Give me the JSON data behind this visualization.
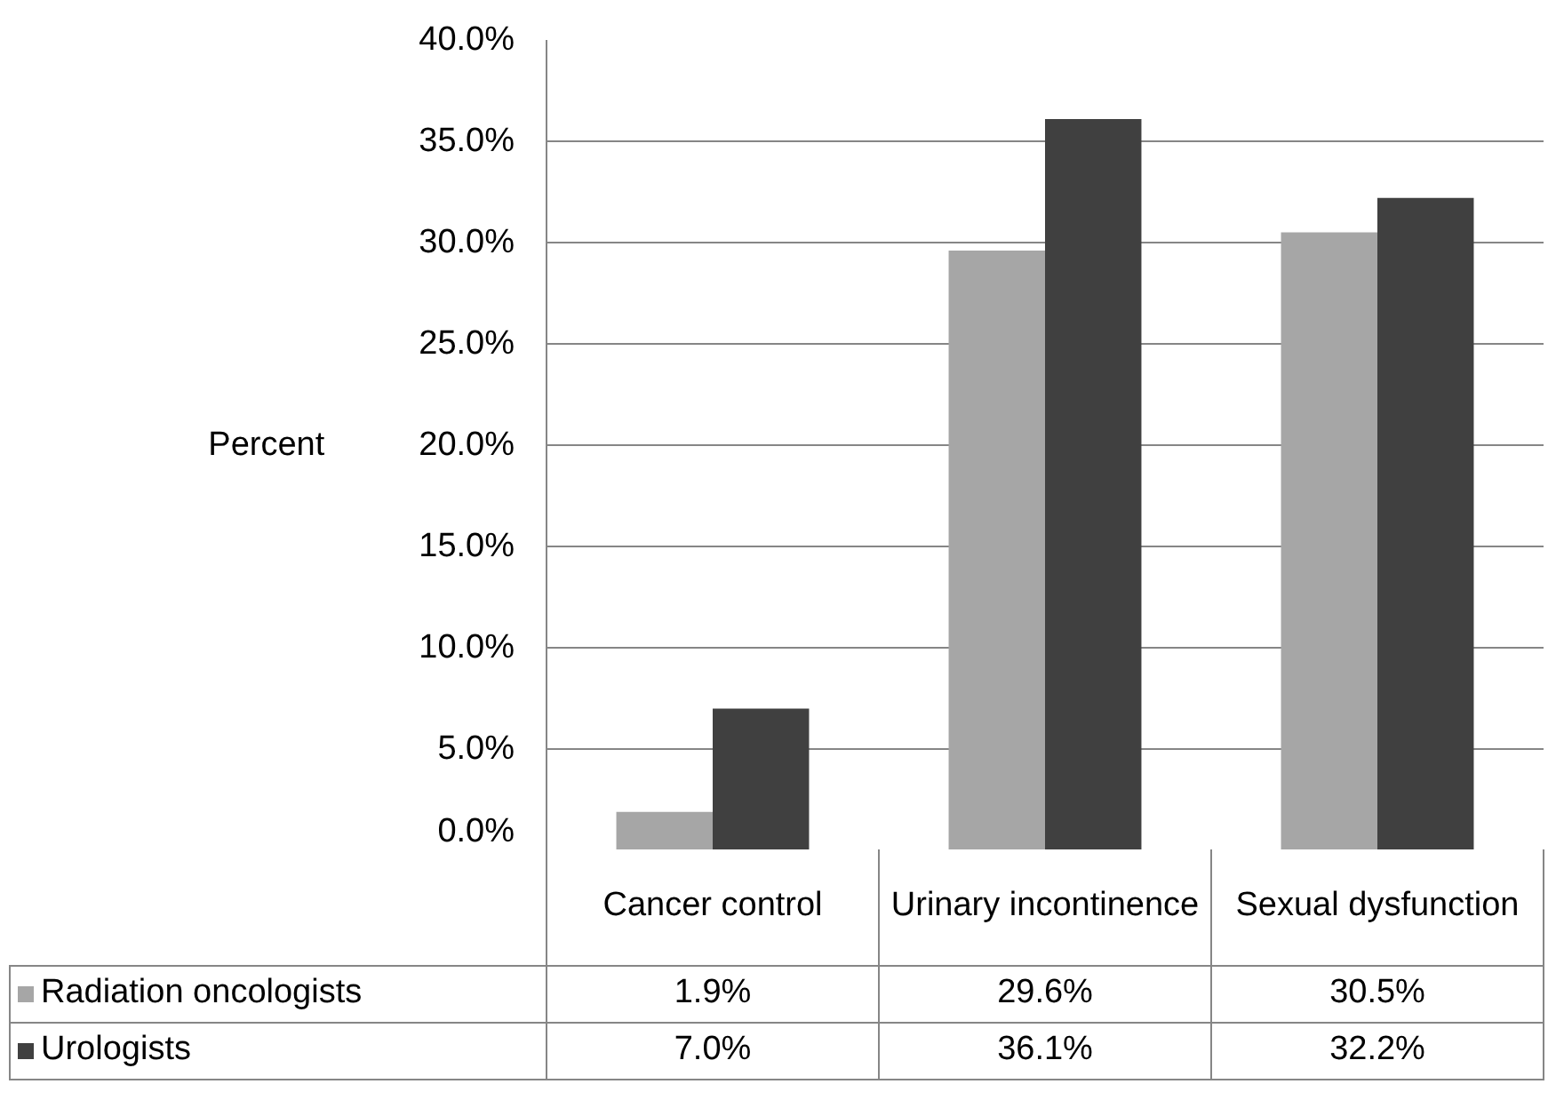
{
  "chart_data": {
    "type": "bar",
    "ylabel": "Percent",
    "categories": [
      "Cancer control",
      "Urinary incontinence",
      "Sexual dysfunction"
    ],
    "series": [
      {
        "name": "Radiation oncologists",
        "color": "#a6a6a6",
        "values": [
          1.9,
          29.6,
          30.5
        ],
        "value_labels": [
          "1.9%",
          "29.6%",
          "30.5%"
        ]
      },
      {
        "name": "Urologists",
        "color": "#404040",
        "values": [
          7.0,
          36.1,
          32.2
        ],
        "value_labels": [
          "7.0%",
          "36.1%",
          "32.2%"
        ]
      }
    ],
    "ylim": [
      0,
      40
    ],
    "yticks": [
      {
        "value": 0,
        "label": "0.0%"
      },
      {
        "value": 5,
        "label": "5.0%"
      },
      {
        "value": 10,
        "label": "10.0%"
      },
      {
        "value": 15,
        "label": "15.0%"
      },
      {
        "value": 20,
        "label": "20.0%"
      },
      {
        "value": 25,
        "label": "25.0%"
      },
      {
        "value": 30,
        "label": "30.0%"
      },
      {
        "value": 35,
        "label": "35.0%"
      },
      {
        "value": 40,
        "label": "40.0%"
      }
    ],
    "grid": "y",
    "legend": "bottom"
  }
}
